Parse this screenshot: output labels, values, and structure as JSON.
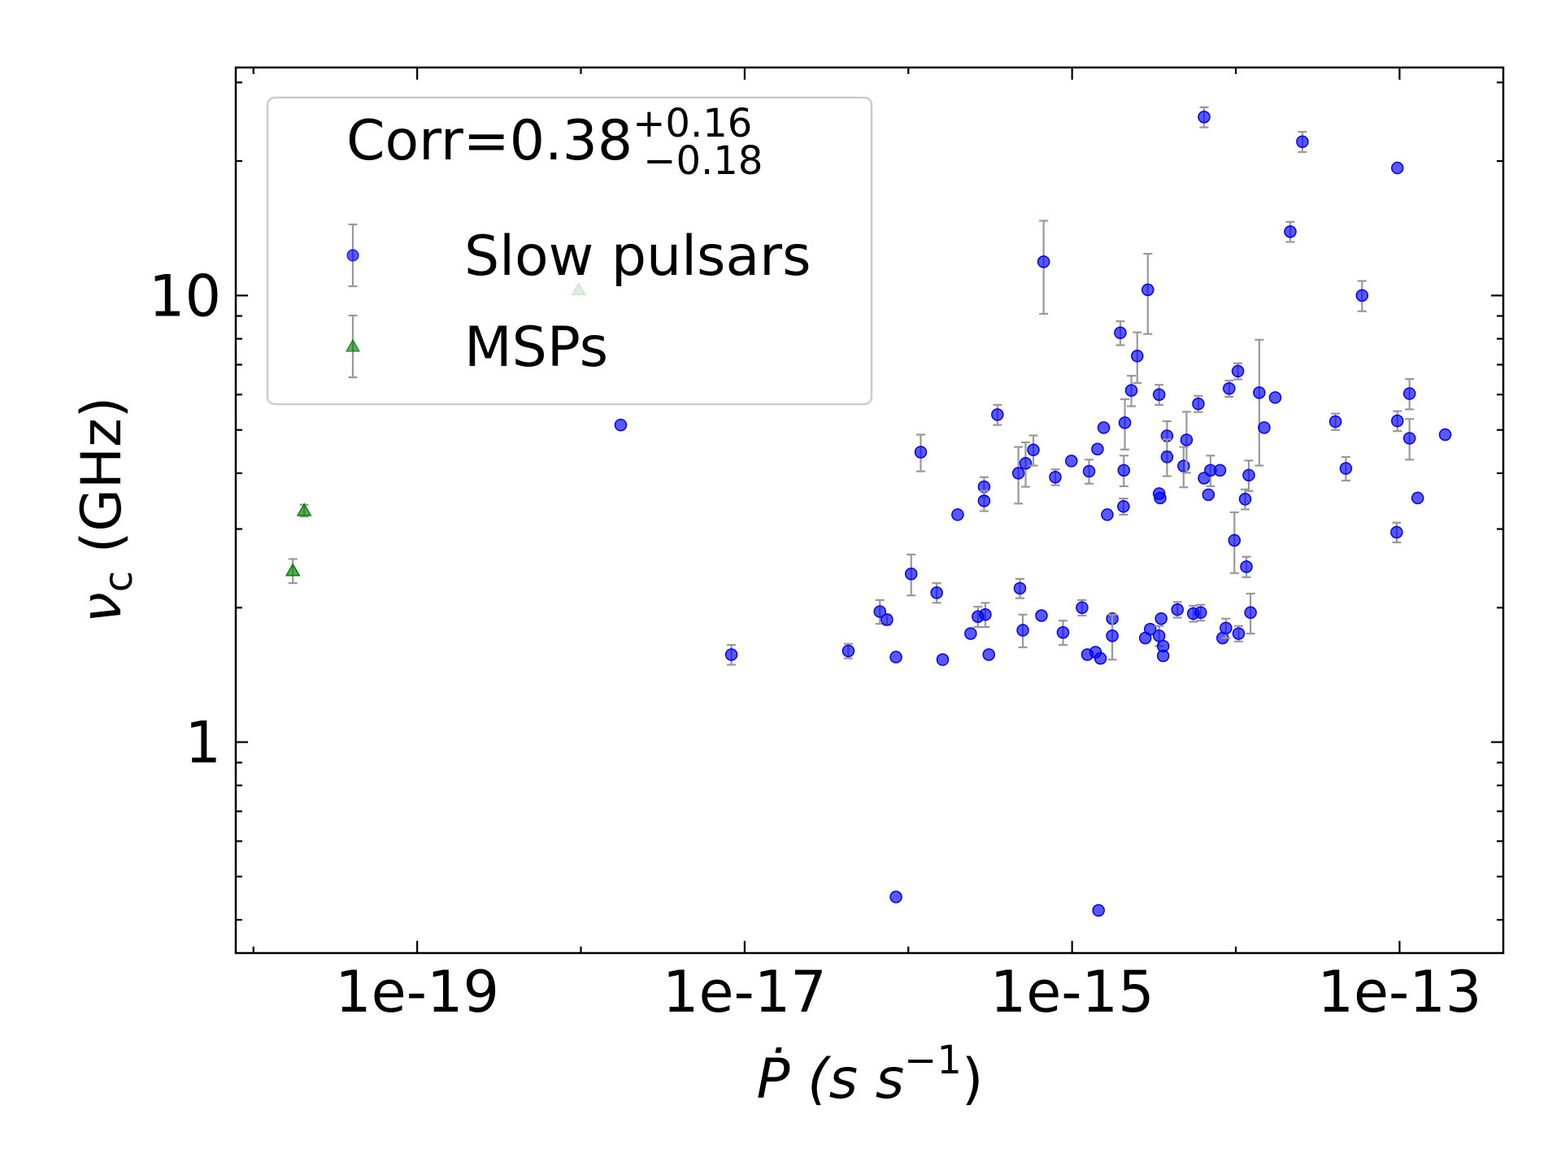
{
  "chart_data": {
    "type": "scatter",
    "x_label": {
      "text": "Ṗ (s s",
      "sup": "−1",
      "end": ")"
    },
    "y_label": {
      "text": "ν",
      "sub": "c",
      "end": " (GHz)"
    },
    "legend_title": {
      "text": "Corr=0.38",
      "sup": "+0.16",
      "sub": "−0.18"
    },
    "legend": "upper left",
    "xscale": "log",
    "yscale": "log",
    "xlim": [
      7.8e-21,
      4.3e-13
    ],
    "ylim": [
      0.337,
      32.4
    ],
    "xticks": [
      1e-19,
      1e-17,
      1e-15,
      1e-13
    ],
    "xminorticks": [
      1e-20,
      1e-18,
      1e-16,
      1e-14
    ],
    "yticks": [
      1,
      10
    ],
    "yminorticks": [
      0.4,
      0.5,
      0.6,
      0.7,
      0.8,
      0.9,
      2,
      3,
      4,
      5,
      6,
      7,
      8,
      9,
      20,
      30
    ],
    "errorbar_color": "#999999",
    "series": [
      {
        "name": "Slow pulsars",
        "color": "#0000ff",
        "marker": "circle",
        "x": [
          1.75e-18,
          8.3e-18,
          4.3e-17,
          6.7e-17,
          7.4e-17,
          8.4e-17,
          8.4e-17,
          1.04e-16,
          1.19e-16,
          1.49e-16,
          1.62e-16,
          2e-16,
          2.4e-16,
          2.66e-16,
          2.9e-16,
          2.9e-16,
          2.95e-16,
          3.1e-16,
          3.5e-16,
          4.7e-16,
          4.8e-16,
          5e-16,
          5.2e-16,
          5.8e-16,
          6.5e-16,
          6.7e-16,
          7.9e-16,
          8.8e-16,
          9.9e-16,
          1.15e-15,
          1.24e-15,
          1.27e-15,
          1.39e-15,
          1.43e-15,
          1.49e-15,
          1.56e-15,
          1.45e-15,
          1.64e-15,
          1.76e-15,
          1.76e-15,
          1.97e-15,
          2.06e-15,
          2.07e-15,
          2.1e-15,
          2.3e-15,
          2.5e-15,
          2.9e-15,
          2.8e-15,
          3e-15,
          3.4e-15,
          3.4e-15,
          3.45e-15,
          3.4e-15,
          3.5e-15,
          3.6e-15,
          3.6e-15,
          3.8e-15,
          3.8e-15,
          4.4e-15,
          4.8e-15,
          5e-15,
          5.5e-15,
          5.9e-15,
          6.1e-15,
          6.4e-15,
          6.4e-15,
          6.8e-15,
          7e-15,
          8e-15,
          8.3e-15,
          8.7e-15,
          9.1e-15,
          9.8e-15,
          1.03e-14,
          1.04e-14,
          1.14e-14,
          1.16e-14,
          1.2e-14,
          1.23e-14,
          1.39e-14,
          1.49e-14,
          1.74e-14,
          2.15e-14,
          2.55e-14,
          4.06e-14,
          4.7e-14,
          5.9e-14,
          9.7e-14,
          9.7e-14,
          9.6e-14,
          1.15e-13,
          1.15e-13,
          1.29e-13,
          1.9e-13
        ],
        "values": [
          5.13,
          1.57,
          1.6,
          1.96,
          1.88,
          1.55,
          0.45,
          2.38,
          4.46,
          2.16,
          1.53,
          3.23,
          1.75,
          1.91,
          3.73,
          3.47,
          1.93,
          1.57,
          5.41,
          4.0,
          2.21,
          1.78,
          4.21,
          4.51,
          1.92,
          11.9,
          3.92,
          1.76,
          4.26,
          2.0,
          1.57,
          4.04,
          1.59,
          4.53,
          1.54,
          5.06,
          0.42,
          3.23,
          1.89,
          1.73,
          8.25,
          3.37,
          4.06,
          5.19,
          6.13,
          7.32,
          10.3,
          1.71,
          1.79,
          6.0,
          3.6,
          3.52,
          1.73,
          1.89,
          1.64,
          1.56,
          4.85,
          4.35,
          1.98,
          4.15,
          4.75,
          1.94,
          5.72,
          1.95,
          25.1,
          3.9,
          3.58,
          4.06,
          4.06,
          1.71,
          1.8,
          6.19,
          2.83,
          6.77,
          1.75,
          3.5,
          2.47,
          3.96,
          1.95,
          6.06,
          5.06,
          5.91,
          13.9,
          22.1,
          5.22,
          4.1,
          10.0,
          19.3,
          5.24,
          2.95,
          6.03,
          4.79,
          3.52,
          4.88
        ],
        "errors": [
          null,
          0.08,
          0.06,
          0.12,
          0.05,
          null,
          null,
          0.25,
          0.42,
          0.11,
          null,
          null,
          null,
          0.1,
          0.19,
          0.18,
          0.12,
          null,
          0.28,
          0.58,
          0.11,
          0.15,
          0.48,
          0.35,
          null,
          2.8,
          0.16,
          0.11,
          null,
          0.08,
          null,
          0.25,
          null,
          null,
          null,
          null,
          null,
          null,
          null,
          0.2,
          0.51,
          0.14,
          0.32,
          0.67,
          0.48,
          0.95,
          2.1,
          null,
          null,
          0.31,
          null,
          null,
          0.09,
          null,
          null,
          null,
          0.38,
          0.41,
          0.08,
          0.43,
          0.74,
          0.08,
          0.24,
          0.08,
          1.3,
          null,
          null,
          0.32,
          null,
          null,
          0.09,
          0.26,
          0.44,
          0.28,
          0.07,
          0.18,
          0.13,
          0.31,
          0.2,
          1.9,
          null,
          null,
          0.72,
          1.15,
          0.22,
          0.25,
          0.78,
          null,
          0.27,
          0.15,
          0.47,
          0.5,
          null,
          null
        ]
      },
      {
        "name": "MSPs",
        "color": "#008000",
        "marker": "triangle",
        "x": [
          1.74e-20,
          2.04e-20,
          9.7e-19
        ],
        "values": [
          2.42,
          3.3,
          10.3
        ],
        "errors": [
          0.15,
          0.1,
          null
        ]
      }
    ]
  }
}
